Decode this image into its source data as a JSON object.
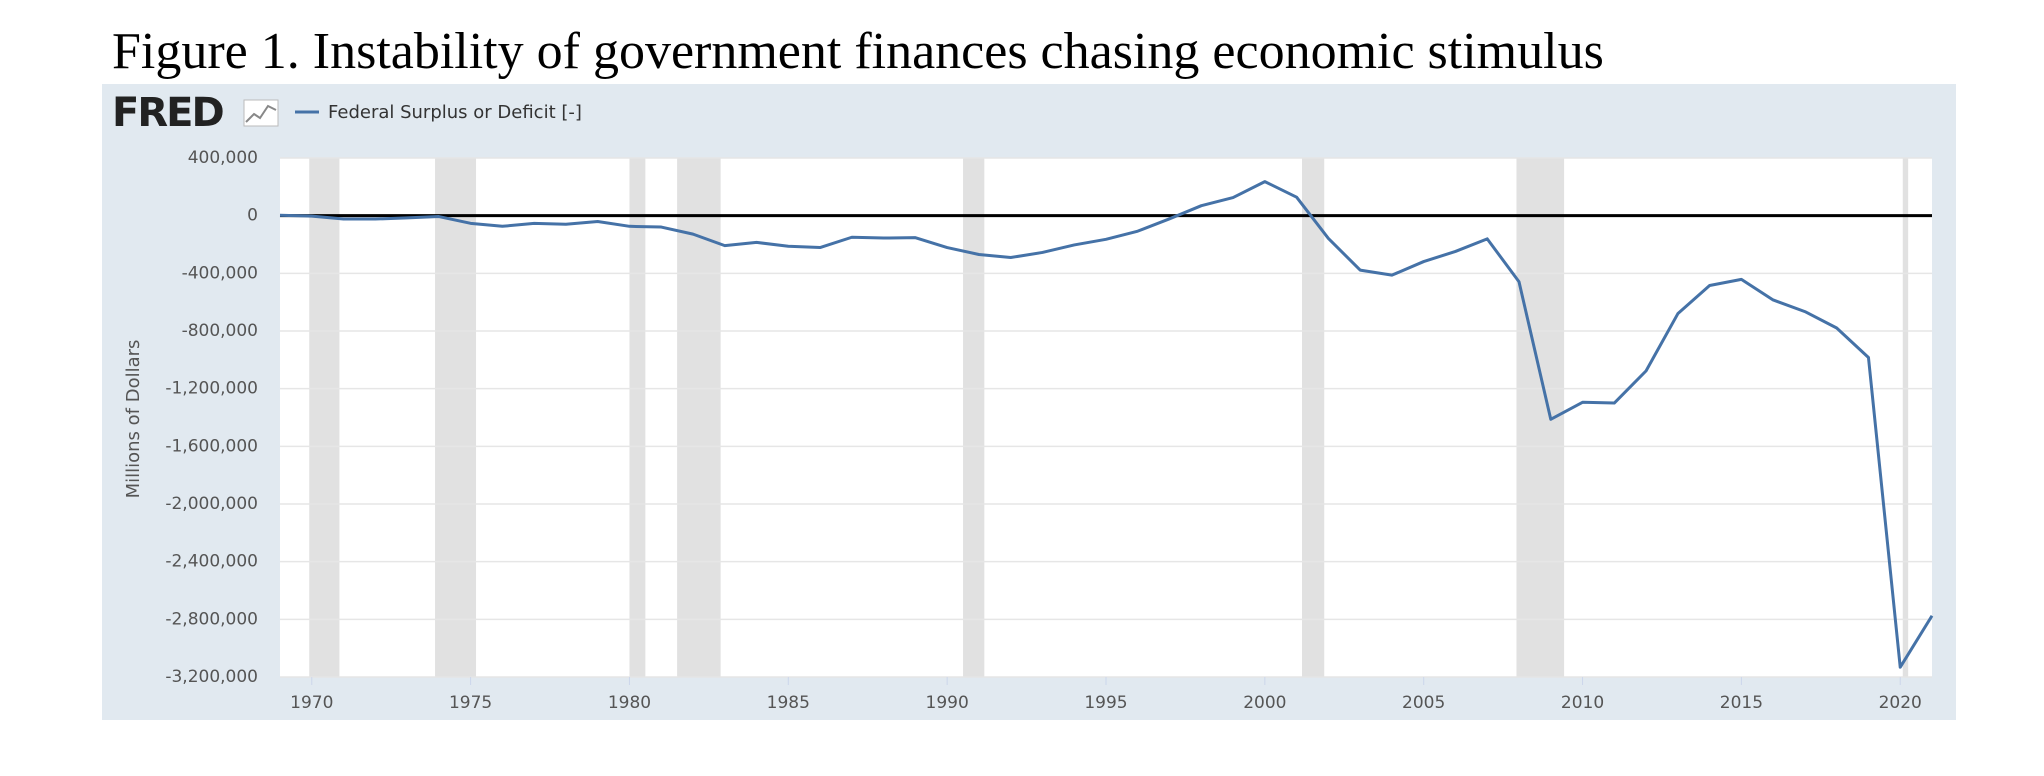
{
  "chart_data": {
    "type": "line",
    "title": "Figure 1. Instability of government finances chasing economic stimulus",
    "logo": "FRED",
    "y_label": "Millions of Dollars",
    "x": [
      1969,
      1970,
      1971,
      1972,
      1973,
      1974,
      1975,
      1976,
      1977,
      1978,
      1979,
      1980,
      1981,
      1982,
      1983,
      1984,
      1985,
      1986,
      1987,
      1988,
      1989,
      1990,
      1991,
      1992,
      1993,
      1994,
      1995,
      1996,
      1997,
      1998,
      1999,
      2000,
      2001,
      2002,
      2003,
      2004,
      2005,
      2006,
      2007,
      2008,
      2009,
      2010,
      2011,
      2012,
      2013,
      2014,
      2015,
      2016,
      2017,
      2018,
      2019,
      2020,
      2021
    ],
    "series": [
      {
        "name": "Federal Surplus or Deficit [-]",
        "color": "#4572a7",
        "values": [
          3242,
          -2842,
          -23033,
          -23373,
          -14908,
          -6135,
          -53242,
          -73732,
          -53659,
          -59185,
          -40726,
          -73830,
          -78968,
          -127977,
          -207802,
          -185367,
          -212308,
          -221227,
          -149730,
          -155178,
          -152639,
          -221036,
          -269238,
          -290321,
          -255051,
          -203186,
          -163952,
          -107431,
          -21884,
          69270,
          125610,
          236241,
          128236,
          -157758,
          -377585,
          -412727,
          -318346,
          -248181,
          -160701,
          -458553,
          -1412688,
          -1294373,
          -1299599,
          -1076573,
          -679775,
          -484602,
          -441960,
          -584651,
          -665446,
          -779137,
          -983592,
          -3131917,
          -2775298
        ]
      }
    ],
    "recessions": [
      [
        1969.92,
        1970.87
      ],
      [
        1973.88,
        1975.17
      ],
      [
        1980.0,
        1980.5
      ],
      [
        1981.5,
        1982.87
      ],
      [
        1990.5,
        1991.17
      ],
      [
        2001.17,
        2001.87
      ],
      [
        2007.92,
        2009.42
      ],
      [
        2020.08,
        2020.25
      ]
    ],
    "xlim": [
      1969,
      2021
    ],
    "xticks": [
      1970,
      1975,
      1980,
      1985,
      1990,
      1995,
      2000,
      2005,
      2010,
      2015,
      2020
    ],
    "ylim": [
      -3200000,
      400000
    ],
    "yticks": [
      {
        "value": 400000,
        "label": "400,000"
      },
      0,
      {
        "value": -400000,
        "label": "-400,000"
      },
      {
        "value": -800000,
        "label": "-800,000"
      },
      {
        "value": -1200000,
        "label": "-1,200,000"
      },
      {
        "value": -1600000,
        "label": "-1,600,000"
      },
      {
        "value": -2000000,
        "label": "-2,000,000"
      },
      {
        "value": -2400000,
        "label": "-2,400,000"
      },
      {
        "value": -2800000,
        "label": "-2,800,000"
      },
      {
        "value": -3200000,
        "label": "-3,200,000"
      }
    ],
    "grid": true,
    "zero_line": true
  }
}
